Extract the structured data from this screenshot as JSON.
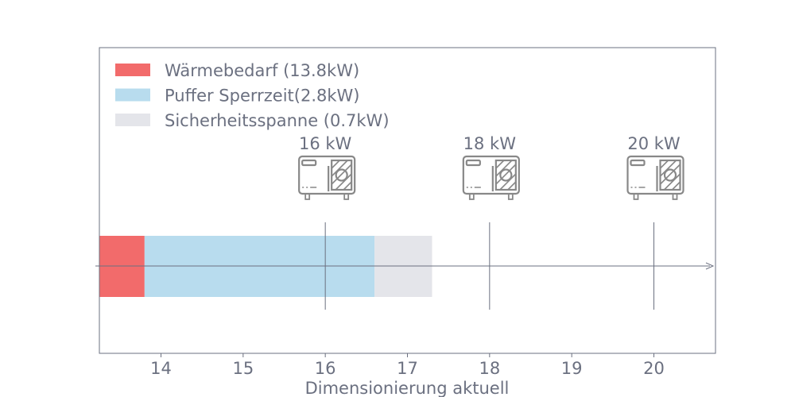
{
  "chart_data": {
    "type": "bar",
    "orientation": "horizontal-stacked",
    "title": "",
    "xlabel": "Dimensionierung aktuell",
    "ylabel": "",
    "xlim": [
      13.25,
      20.75
    ],
    "xticks": [
      14,
      15,
      16,
      17,
      18,
      19,
      20
    ],
    "grid": false,
    "legend_position": "top-left",
    "series": [
      {
        "name": "Wärmebedarf (13.8kW)",
        "start": 0,
        "end": 13.8,
        "color": "#f26b6b"
      },
      {
        "name": "Puffer Sperrzeit(2.8kW)",
        "start": 13.8,
        "end": 16.6,
        "color": "#b8dcee"
      },
      {
        "name": "Sicherheitsspanne (0.7kW)",
        "start": 16.6,
        "end": 17.3,
        "color": "#e4e5ea"
      }
    ],
    "markers": [
      {
        "x": 16,
        "label": "16 kW",
        "icon": "heat-pump-icon"
      },
      {
        "x": 18,
        "label": "18 kW",
        "icon": "heat-pump-icon"
      },
      {
        "x": 20,
        "label": "20 kW",
        "icon": "heat-pump-icon"
      }
    ],
    "colors": {
      "text": "#6b7080",
      "axis": "#6b7080",
      "icon": "#888888"
    }
  }
}
